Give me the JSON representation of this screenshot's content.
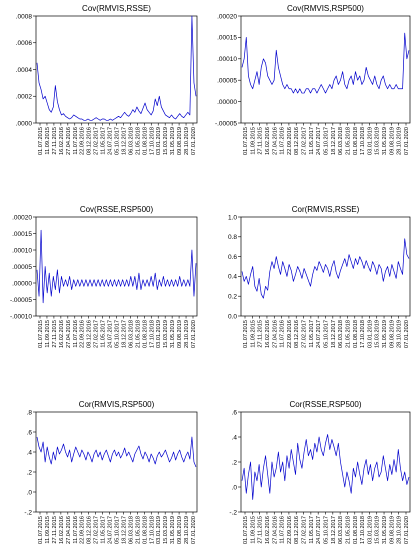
{
  "date_ticks": [
    "01.07.2015",
    "11.09.2015",
    "27.11.2015",
    "16.02.2016",
    "27.04.2016",
    "11.07.2016",
    "22.09.2016",
    "08.12.2016",
    "27.02.2017",
    "11.05.2017",
    "24.07.2017",
    "05.10.2017",
    "18.12.2017",
    "06.03.2018",
    "21.05.2018",
    "01.08.2018",
    "17.10.2018",
    "03.01.2019",
    "15.03.2019",
    "31.05.2019",
    "09.08.2019",
    "28.10.2019",
    "07.01.2020"
  ],
  "chart_data": [
    {
      "type": "line",
      "title": "Cov(RMVIS,RSSE)",
      "y_ticks": [
        ".0000",
        ".0002",
        ".0004",
        ".0006",
        ".0008"
      ],
      "ylim": [
        0,
        0.0008
      ],
      "x_axis": "dates",
      "series": [
        {
          "values": [
            0.00045,
            0.0003,
            0.00025,
            0.00018,
            0.0002,
            0.00015,
            0.0001,
            8e-05,
            0.00012,
            0.00028,
            0.00016,
            0.0001,
            6e-05,
            7e-05,
            5e-05,
            4e-05,
            3e-05,
            4e-05,
            6e-05,
            5e-05,
            4e-05,
            3e-05,
            3e-05,
            2e-05,
            2e-05,
            3e-05,
            2e-05,
            2e-05,
            3e-05,
            4e-05,
            3e-05,
            2e-05,
            3e-05,
            3e-05,
            2e-05,
            2e-05,
            3e-05,
            2e-05,
            3e-05,
            4e-05,
            5e-05,
            4e-05,
            6e-05,
            8e-05,
            6e-05,
            5e-05,
            7e-05,
            0.0001,
            8e-05,
            0.00012,
            9e-05,
            7e-05,
            0.00011,
            0.00015,
            0.0001,
            8e-05,
            6e-05,
            9e-05,
            0.00018,
            0.00013,
            0.0002,
            0.00012,
            9e-05,
            6e-05,
            5e-05,
            4e-05,
            6e-05,
            4e-05,
            3e-05,
            5e-05,
            7e-05,
            5e-05,
            4e-05,
            6e-05,
            8e-05,
            6e-05,
            0.0008,
            0.0003,
            0.0002
          ]
        }
      ]
    },
    {
      "type": "line",
      "title": "Cov(RMVIS,RSP500)",
      "y_ticks": [
        "-.00005",
        ".00000",
        ".00005",
        ".00010",
        ".00015",
        ".00020"
      ],
      "ylim": [
        -5e-05,
        0.0002
      ],
      "x_axis": "dates",
      "series": [
        {
          "values": [
            8e-05,
            0.0001,
            0.00015,
            6e-05,
            4e-05,
            3e-05,
            5e-05,
            7e-05,
            4e-05,
            8e-05,
            0.0001,
            9e-05,
            6e-05,
            5e-05,
            4e-05,
            5e-05,
            0.00012,
            8e-05,
            6e-05,
            4e-05,
            3e-05,
            4e-05,
            3e-05,
            3e-05,
            2e-05,
            3e-05,
            2e-05,
            3e-05,
            2e-05,
            2e-05,
            3e-05,
            3e-05,
            2e-05,
            3e-05,
            3e-05,
            2e-05,
            3e-05,
            4e-05,
            3e-05,
            2e-05,
            3e-05,
            4e-05,
            3e-05,
            5e-05,
            6e-05,
            4e-05,
            5e-05,
            7e-05,
            4e-05,
            3e-05,
            5e-05,
            6e-05,
            4e-05,
            7e-05,
            5e-05,
            6e-05,
            4e-05,
            5e-05,
            8e-05,
            6e-05,
            5e-05,
            4e-05,
            6e-05,
            4e-05,
            3e-05,
            5e-05,
            6e-05,
            4e-05,
            3e-05,
            4e-05,
            3e-05,
            3e-05,
            4e-05,
            3e-05,
            3e-05,
            3e-05,
            0.00016,
            0.0001,
            0.00012
          ]
        }
      ]
    },
    {
      "type": "line",
      "title": "Cov(RSSE,RSP500)",
      "y_ticks": [
        "-.00010",
        "-.00005",
        ".00000",
        ".00005",
        ".00010",
        ".00015",
        ".00020"
      ],
      "ylim": [
        -0.0001,
        0.0002
      ],
      "x_axis": "dates",
      "series": [
        {
          "values": [
            4e-05,
            -4e-05,
            0.00016,
            -6e-05,
            5e-05,
            -3e-05,
            3e-05,
            -4e-05,
            2e-05,
            -2e-05,
            4e-05,
            -3e-05,
            2e-05,
            -1e-05,
            1e-05,
            -1e-05,
            2e-05,
            -2e-05,
            1e-05,
            -1e-05,
            1e-05,
            -1e-05,
            1e-05,
            -1e-05,
            1e-05,
            -1e-05,
            1e-05,
            -1e-05,
            1e-05,
            -1e-05,
            1e-05,
            -1e-05,
            1e-05,
            -1e-05,
            1e-05,
            -1e-05,
            1e-05,
            -1e-05,
            1e-05,
            -1e-05,
            1e-05,
            -1e-05,
            1e-05,
            -1e-05,
            1e-05,
            -1e-05,
            2e-05,
            -1e-05,
            2e-05,
            -2e-05,
            3e-05,
            -2e-05,
            1e-05,
            -1e-05,
            1e-05,
            -1e-05,
            2e-05,
            -1e-05,
            3e-05,
            -2e-05,
            1e-05,
            -1e-05,
            2e-05,
            -1e-05,
            1e-05,
            -1e-05,
            1e-05,
            -1e-05,
            1e-05,
            -1e-05,
            2e-05,
            -1e-05,
            1e-05,
            -1e-05,
            1e-05,
            -1e-05,
            0.0001,
            -4e-05,
            6e-05
          ]
        }
      ]
    },
    {
      "type": "line",
      "title": "Cor(RMVIS,RSSE)",
      "y_ticks": [
        "0.0",
        "0.2",
        "0.4",
        "0.6",
        "0.8",
        "1.0"
      ],
      "ylim": [
        0,
        1.0
      ],
      "x_axis": "dates",
      "series": [
        {
          "values": [
            0.45,
            0.35,
            0.4,
            0.32,
            0.42,
            0.5,
            0.3,
            0.25,
            0.38,
            0.22,
            0.18,
            0.3,
            0.26,
            0.45,
            0.55,
            0.48,
            0.6,
            0.5,
            0.42,
            0.55,
            0.48,
            0.4,
            0.52,
            0.46,
            0.35,
            0.42,
            0.5,
            0.45,
            0.38,
            0.48,
            0.42,
            0.36,
            0.3,
            0.42,
            0.5,
            0.46,
            0.55,
            0.5,
            0.44,
            0.52,
            0.48,
            0.4,
            0.5,
            0.56,
            0.44,
            0.38,
            0.46,
            0.52,
            0.58,
            0.5,
            0.62,
            0.55,
            0.48,
            0.58,
            0.52,
            0.6,
            0.55,
            0.48,
            0.56,
            0.5,
            0.45,
            0.55,
            0.5,
            0.42,
            0.52,
            0.48,
            0.35,
            0.45,
            0.5,
            0.4,
            0.52,
            0.45,
            0.38,
            0.55,
            0.48,
            0.42,
            0.78,
            0.62,
            0.58
          ]
        }
      ]
    },
    {
      "type": "line",
      "title": "Cor(RMVIS,RSP500)",
      "y_ticks": [
        "-.2",
        ".0",
        ".2",
        ".4",
        ".6",
        ".8"
      ],
      "ylim": [
        -0.2,
        0.8
      ],
      "x_axis": "dates",
      "series": [
        {
          "values": [
            0.55,
            0.45,
            0.4,
            0.5,
            0.3,
            0.45,
            0.35,
            0.28,
            0.4,
            0.32,
            0.45,
            0.38,
            0.42,
            0.48,
            0.4,
            0.35,
            0.42,
            0.3,
            0.38,
            0.45,
            0.4,
            0.35,
            0.42,
            0.38,
            0.32,
            0.4,
            0.36,
            0.3,
            0.38,
            0.42,
            0.35,
            0.4,
            0.32,
            0.38,
            0.42,
            0.36,
            0.3,
            0.38,
            0.42,
            0.36,
            0.4,
            0.34,
            0.38,
            0.44,
            0.36,
            0.4,
            0.35,
            0.3,
            0.38,
            0.42,
            0.46,
            0.38,
            0.33,
            0.4,
            0.36,
            0.3,
            0.38,
            0.34,
            0.28,
            0.36,
            0.4,
            0.35,
            0.38,
            0.42,
            0.36,
            0.3,
            0.34,
            0.4,
            0.32,
            0.38,
            0.42,
            0.35,
            0.3,
            0.36,
            0.4,
            0.33,
            0.55,
            0.3,
            0.25
          ]
        }
      ]
    },
    {
      "type": "line",
      "title": "Cor(RSSE,RSP500)",
      "y_ticks": [
        "-.2",
        ".0",
        ".2",
        ".4",
        ".6"
      ],
      "ylim": [
        -0.2,
        0.6
      ],
      "x_axis": "dates",
      "series": [
        {
          "values": [
            0.05,
            0.15,
            -0.05,
            0.1,
            0.2,
            -0.1,
            0.12,
            0.05,
            0.18,
            0.0,
            0.15,
            0.25,
            0.1,
            -0.05,
            0.2,
            0.08,
            0.15,
            0.28,
            0.12,
            0.2,
            0.05,
            0.25,
            0.15,
            0.3,
            0.2,
            0.1,
            0.35,
            0.22,
            0.15,
            0.28,
            0.38,
            0.25,
            0.3,
            0.22,
            0.35,
            0.28,
            0.4,
            0.3,
            0.25,
            0.35,
            0.42,
            0.3,
            0.38,
            0.32,
            0.25,
            0.35,
            0.2,
            0.1,
            0.0,
            0.12,
            0.05,
            -0.05,
            0.15,
            0.08,
            0.2,
            0.1,
            0.02,
            0.15,
            0.22,
            0.1,
            0.18,
            0.05,
            0.15,
            0.2,
            0.08,
            0.12,
            0.25,
            0.15,
            0.05,
            0.18,
            0.1,
            0.22,
            0.12,
            0.3,
            0.15,
            0.05,
            0.12,
            0.02,
            0.08
          ]
        }
      ]
    }
  ]
}
